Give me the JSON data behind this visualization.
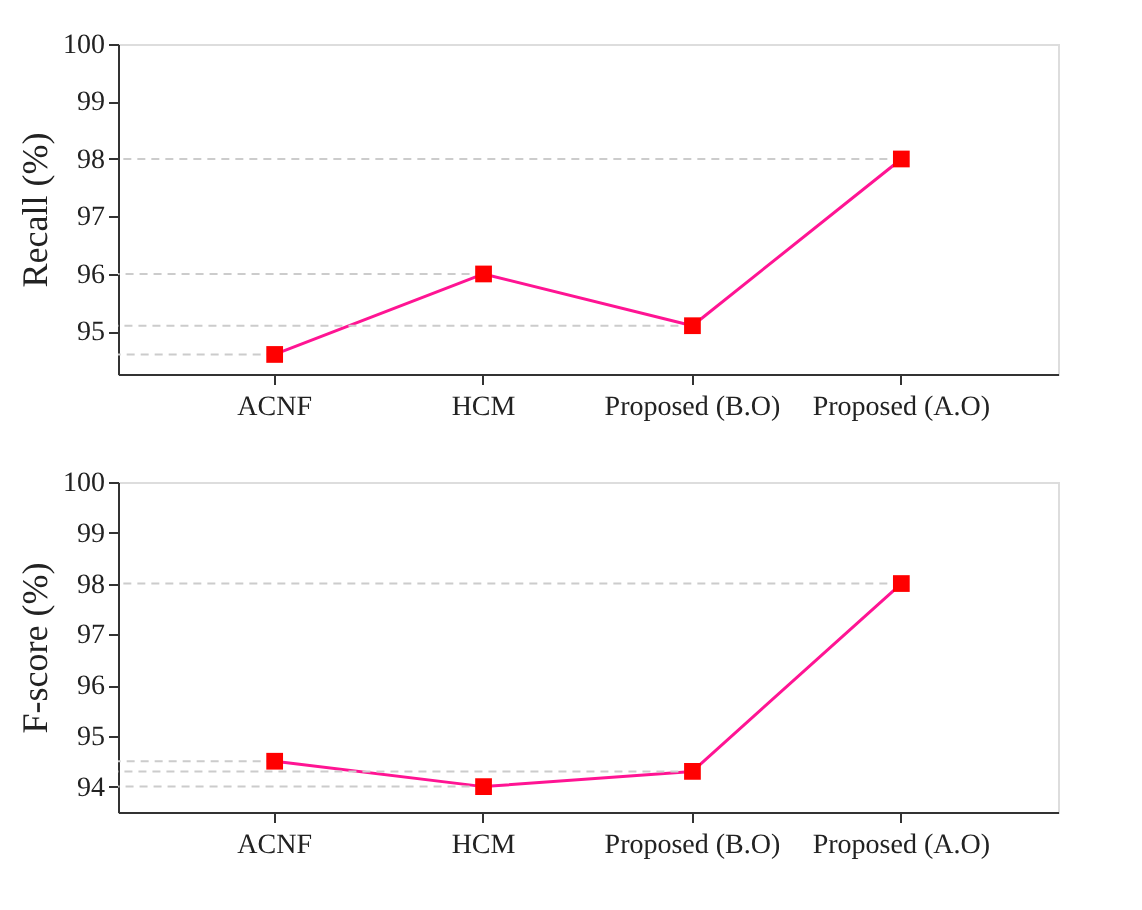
{
  "chart_data": [
    {
      "type": "line",
      "ylabel": "Recall (%)",
      "categories": [
        "ACNF",
        "HCM",
        "Proposed  (B.O)",
        "Proposed (A.O)"
      ],
      "series": [
        {
          "color": "#ff1493",
          "values": [
            94.6,
            96.0,
            95.1,
            98.0
          ]
        }
      ],
      "marker": "square",
      "line_style": "solid",
      "ylim": [
        94.26,
        100
      ],
      "yticks": [
        95,
        96,
        97,
        98,
        99,
        100
      ],
      "ref_lines": [
        {
          "axis": "y",
          "value": 94.6,
          "color": "#cccccc",
          "line_style": "dashed"
        },
        {
          "axis": "y",
          "value": 96.0,
          "color": "#cccccc",
          "line_style": "dashed"
        },
        {
          "axis": "y",
          "value": 95.1,
          "color": "#cccccc",
          "line_style": "dashed"
        },
        {
          "axis": "y",
          "value": 98.0,
          "color": "#cccccc",
          "line_style": "dashed"
        }
      ]
    },
    {
      "type": "line",
      "ylabel": "F-score (%)",
      "categories": [
        "ACNF",
        "HCM",
        "Proposed  (B.O)",
        "Proposed (A.O)"
      ],
      "series": [
        {
          "color": "#ff1493",
          "values": [
            94.5,
            94.0,
            94.3,
            98.0
          ]
        }
      ],
      "marker": "square",
      "line_style": "solid",
      "ylim": [
        93.5,
        100
      ],
      "yticks": [
        94,
        95,
        96,
        97,
        98,
        99,
        100
      ],
      "ref_lines": [
        {
          "axis": "y",
          "value": 94.5,
          "color": "#cccccc",
          "line_style": "dashed"
        },
        {
          "axis": "y",
          "value": 94.0,
          "color": "#cccccc",
          "line_style": "dashed"
        },
        {
          "axis": "y",
          "value": 94.3,
          "color": "#cccccc",
          "line_style": "dashed"
        },
        {
          "axis": "y",
          "value": 98.0,
          "color": "#cccccc",
          "line_style": "dashed"
        }
      ]
    }
  ]
}
